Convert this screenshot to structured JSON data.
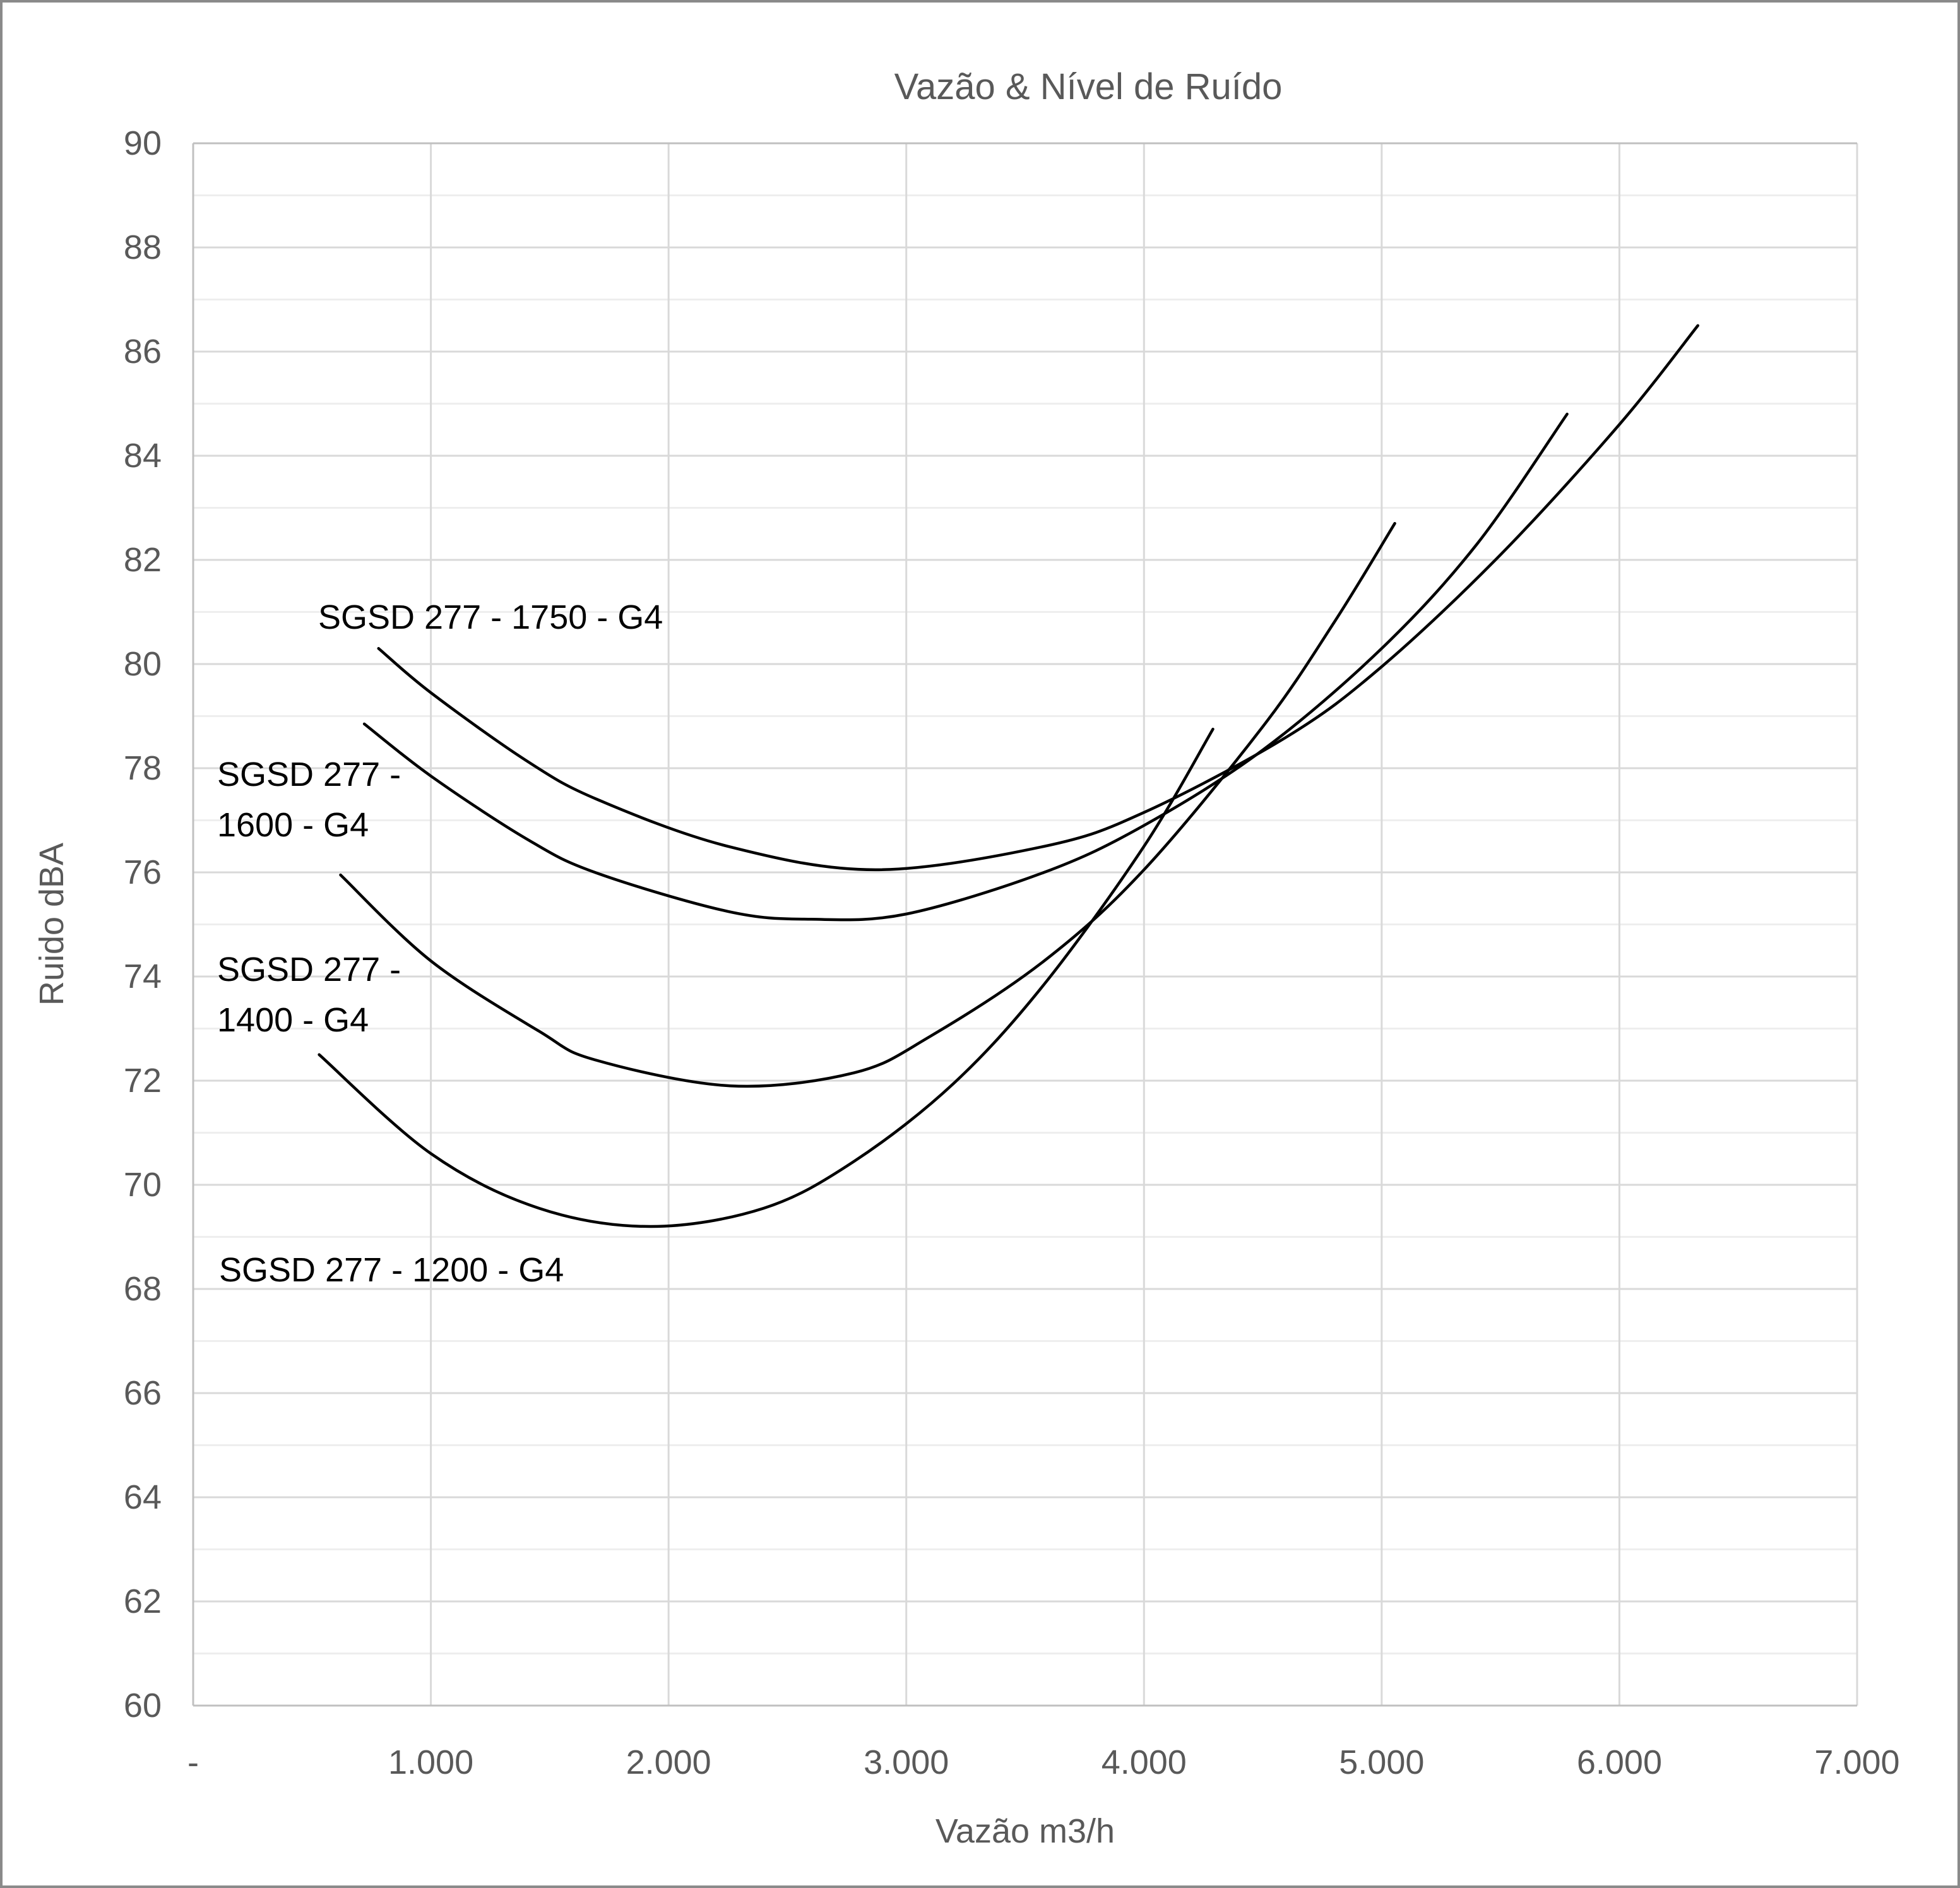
{
  "chart_data": {
    "type": "line",
    "title": "Vazão & Nível de Ruído",
    "xlabel": "Vazão m3/h",
    "ylabel": "Ruido dBA",
    "xlim": [
      0,
      7000
    ],
    "ylim": [
      60,
      90
    ],
    "x_tick_values": [
      0,
      1000,
      2000,
      3000,
      4000,
      5000,
      6000,
      7000
    ],
    "x_tick_labels": [
      "-",
      "1.000",
      "2.000",
      "3.000",
      "4.000",
      "5.000",
      "6.000",
      "7.000"
    ],
    "y_tick_values": [
      90,
      88,
      86,
      84,
      82,
      80,
      78,
      76,
      74,
      72,
      70,
      68,
      66,
      64,
      62,
      60
    ],
    "y_tick_labels": [
      "90",
      "88",
      "86",
      "84",
      "82",
      "80",
      "78",
      "76",
      "74",
      "72",
      "70",
      "68",
      "66",
      "64",
      "62",
      "60"
    ],
    "y_major_step": 2,
    "y_minor_step": 1,
    "x_major_step": 1000,
    "grid": true,
    "legend_position": "inline-annotations",
    "colors": {
      "series_line": "#000000",
      "axis_text": "#595959",
      "annotation_text": "#000000",
      "major_grid": "#d9d9d9",
      "minor_grid": "#eeeeee",
      "axis_line": "#c0c0c0",
      "outer_border": "#8a8a8a",
      "background": "#ffffff"
    },
    "series": [
      {
        "name": "SGSD 277 - 1750 - G4",
        "points": [
          [
            780,
            80.3
          ],
          [
            1000,
            79.45
          ],
          [
            1400,
            78.15
          ],
          [
            1700,
            77.4
          ],
          [
            2250,
            76.5
          ],
          [
            2870,
            76.05
          ],
          [
            3580,
            76.5
          ],
          [
            4000,
            77.15
          ],
          [
            4600,
            78.6
          ],
          [
            5000,
            79.95
          ],
          [
            5500,
            82.1
          ],
          [
            6000,
            84.6
          ],
          [
            6330,
            86.5
          ]
        ]
      },
      {
        "name": "SGSD 277 - 1600 - G4",
        "points": [
          [
            720,
            78.85
          ],
          [
            1000,
            77.85
          ],
          [
            1400,
            76.65
          ],
          [
            1690,
            76.0
          ],
          [
            2250,
            75.25
          ],
          [
            2600,
            75.1
          ],
          [
            3000,
            75.2
          ],
          [
            3580,
            76.0
          ],
          [
            4000,
            76.9
          ],
          [
            4500,
            78.35
          ],
          [
            5000,
            80.3
          ],
          [
            5400,
            82.3
          ],
          [
            5780,
            84.8
          ]
        ]
      },
      {
        "name": "SGSD 277 - 1400 - G4",
        "points": [
          [
            620,
            75.95
          ],
          [
            1000,
            74.3
          ],
          [
            1455,
            72.95
          ],
          [
            1690,
            72.4
          ],
          [
            2260,
            71.9
          ],
          [
            2780,
            72.15
          ],
          [
            3100,
            72.85
          ],
          [
            3580,
            74.3
          ],
          [
            4000,
            76.05
          ],
          [
            4500,
            78.8
          ],
          [
            4800,
            80.8
          ],
          [
            5055,
            82.7
          ]
        ]
      },
      {
        "name": "SGSD 277 - 1200 - G4",
        "points": [
          [
            530,
            72.5
          ],
          [
            1000,
            70.6
          ],
          [
            1455,
            69.55
          ],
          [
            1925,
            69.2
          ],
          [
            2400,
            69.55
          ],
          [
            2780,
            70.45
          ],
          [
            3200,
            71.95
          ],
          [
            3580,
            73.85
          ],
          [
            4000,
            76.5
          ],
          [
            4290,
            78.75
          ]
        ]
      }
    ],
    "annotations": [
      {
        "lines": [
          "SGSD 277 - 1750 - G4"
        ],
        "x": 500,
        "y": 934
      },
      {
        "lines": [
          "SGSD 277 -",
          "1600 - G4"
        ],
        "x": 340,
        "y": 1183
      },
      {
        "lines": [
          "SGSD 277 -",
          "1400 - G4"
        ],
        "x": 340,
        "y": 1492
      },
      {
        "lines": [
          "SGSD 277 - 1200 - G4"
        ],
        "x": 343,
        "y": 1968
      }
    ]
  }
}
